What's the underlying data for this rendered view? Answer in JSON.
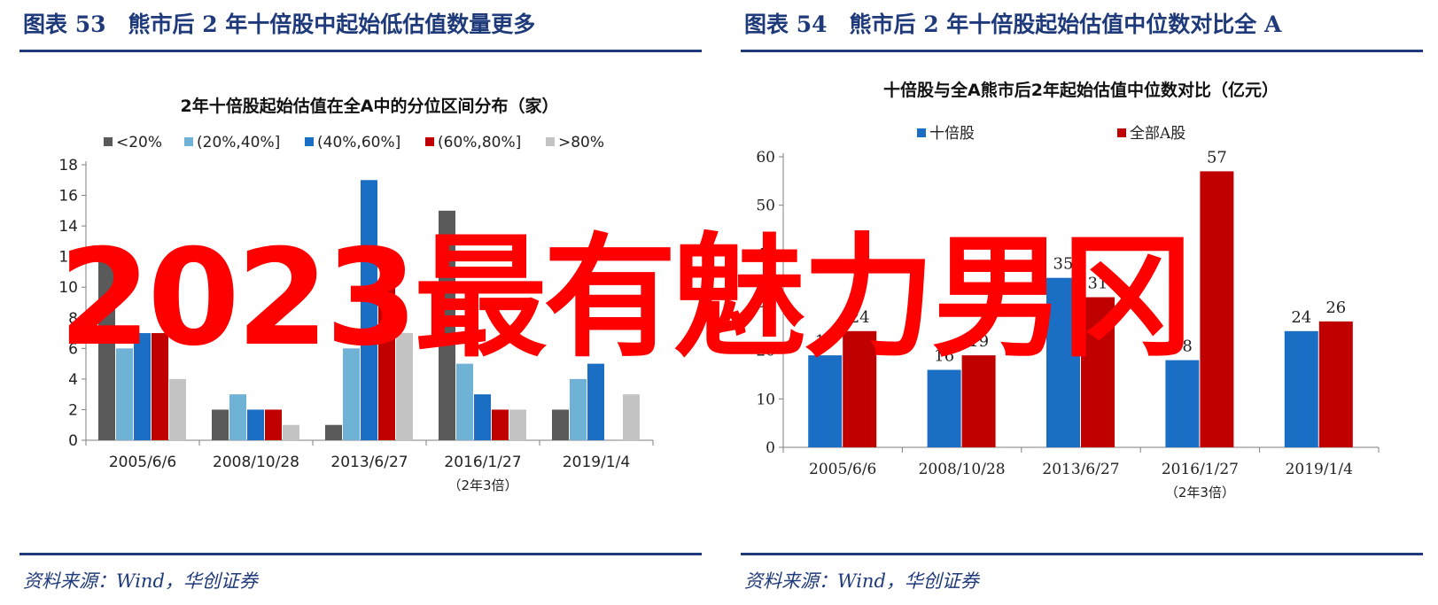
{
  "left_panel": {
    "figure_title": "图表 53　熊市后 2 年十倍股中起始低估值数量更多",
    "source": "资料来源：Wind，华创证券"
  },
  "right_panel": {
    "figure_title": "图表 54　熊市后 2 年十倍股起始估值中位数对比全 A",
    "source": "资料来源：Wind，华创证券"
  },
  "watermark": "2023最有魅力男冈",
  "chart_data": [
    {
      "type": "bar",
      "title": "2年十倍股起始估值在全A中的分位区间分布（家）",
      "categories": [
        "2005/6/6",
        "2008/10/28",
        "2013/6/27",
        "2016/1/27",
        "2019/1/4"
      ],
      "category_notes": {
        "3": "（2年3倍）"
      },
      "series": [
        {
          "name": "<20%",
          "color": "#5a5a5a",
          "values": [
            12,
            2,
            1,
            15,
            2
          ]
        },
        {
          "name": "(20%,40%]",
          "color": "#6fb2d6",
          "values": [
            6,
            3,
            6,
            5,
            4
          ]
        },
        {
          "name": "(40%,60%]",
          "color": "#1a6fc4",
          "values": [
            7,
            2,
            17,
            3,
            5
          ]
        },
        {
          "name": "(60%,80%]",
          "color": "#c00000",
          "values": [
            7,
            2,
            10,
            2,
            0
          ]
        },
        {
          "name": ">80%",
          "color": "#c4c4c4",
          "values": [
            4,
            1,
            7,
            2,
            3
          ]
        }
      ],
      "ylim": [
        0,
        18
      ],
      "yticks": [
        0,
        2,
        4,
        6,
        8,
        10,
        12,
        14,
        16,
        18
      ],
      "legend": "top",
      "grid": false
    },
    {
      "type": "bar",
      "title": "十倍股与全A熊市后2年起始估值中位数对比（亿元）",
      "categories": [
        "2005/6/6",
        "2008/10/28",
        "2013/6/27",
        "2016/1/27",
        "2019/1/4"
      ],
      "category_notes": {
        "3": "（2年3倍）"
      },
      "series": [
        {
          "name": "十倍股",
          "color": "#1a6fc4",
          "values": [
            19,
            16,
            35,
            18,
            24
          ]
        },
        {
          "name": "全部A股",
          "color": "#c00000",
          "values": [
            24,
            19,
            31,
            57,
            26
          ]
        }
      ],
      "ylim": [
        0,
        60
      ],
      "yticks": [
        0,
        10,
        20,
        30,
        40,
        50,
        60
      ],
      "legend": "top",
      "grid": false,
      "data_labels": true
    }
  ]
}
